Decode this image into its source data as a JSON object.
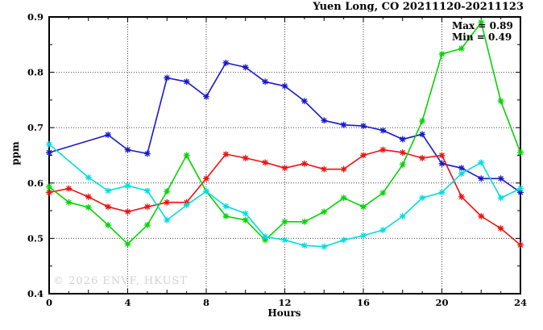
{
  "title": "Yuen Long, CO 20211120-20211123",
  "ylabel": "ppm",
  "xlabel": "Hours",
  "annotation": {
    "max_label": "Max = 0.89",
    "min_label": "Min = 0.49"
  },
  "watermark": {
    "text": "© 2026 ENVF, HKUST",
    "color": "#d2d2d2"
  },
  "colors": {
    "axis": "#000000",
    "grid": "#444444",
    "series_blue": "#1717cd",
    "series_red": "#ee1111",
    "series_green": "#00d500",
    "series_cyan": "#00dde0"
  },
  "chart_data": {
    "type": "line",
    "title": "Yuen Long, CO 20211120-20211123",
    "xlabel": "Hours",
    "ylabel": "ppm",
    "xlim": [
      0,
      24
    ],
    "ylim": [
      0.4,
      0.9
    ],
    "x_major_ticks": [
      0,
      4,
      8,
      12,
      16,
      20,
      24
    ],
    "y_major_ticks": [
      0.4,
      0.5,
      0.6,
      0.7,
      0.8,
      0.9
    ],
    "x_minor_step": 1,
    "y_minor_step": 0.05,
    "grid": true,
    "legend_position": "none",
    "marker": "asterisk",
    "annotations": [
      "Max = 0.89",
      "Min = 0.49"
    ],
    "x": [
      0,
      1,
      2,
      3,
      4,
      5,
      6,
      7,
      8,
      9,
      10,
      11,
      12,
      13,
      14,
      15,
      16,
      17,
      18,
      19,
      20,
      21,
      22,
      23,
      24
    ],
    "series": [
      {
        "name": "blue",
        "color": "#1717cd",
        "values": [
          0.655,
          null,
          null,
          0.687,
          0.66,
          0.653,
          0.79,
          0.783,
          0.756,
          0.817,
          0.809,
          0.783,
          0.775,
          0.748,
          0.713,
          0.705,
          0.703,
          0.695,
          0.679,
          0.688,
          0.635,
          0.627,
          0.608,
          0.608,
          0.583
        ]
      },
      {
        "name": "red",
        "color": "#ee1111",
        "values": [
          0.583,
          0.59,
          0.575,
          0.557,
          0.548,
          0.557,
          0.565,
          0.565,
          0.608,
          0.652,
          0.645,
          0.637,
          0.627,
          0.635,
          0.625,
          0.625,
          0.65,
          0.66,
          0.655,
          0.645,
          0.65,
          0.575,
          0.54,
          0.518,
          0.488
        ]
      },
      {
        "name": "green",
        "color": "#00d500",
        "values": [
          0.593,
          0.565,
          0.556,
          0.524,
          0.49,
          0.524,
          0.585,
          0.65,
          0.585,
          0.54,
          0.533,
          0.497,
          0.53,
          0.53,
          0.548,
          0.573,
          0.557,
          0.582,
          0.633,
          0.712,
          0.833,
          0.843,
          0.89,
          0.748,
          0.655
        ]
      },
      {
        "name": "cyan",
        "color": "#00dde0",
        "values": [
          0.67,
          null,
          0.61,
          0.586,
          0.595,
          0.586,
          0.533,
          0.56,
          0.585,
          0.558,
          0.545,
          0.503,
          0.497,
          0.487,
          0.485,
          0.497,
          0.505,
          0.515,
          0.54,
          0.573,
          0.583,
          0.617,
          0.637,
          0.573,
          0.59
        ]
      }
    ]
  }
}
